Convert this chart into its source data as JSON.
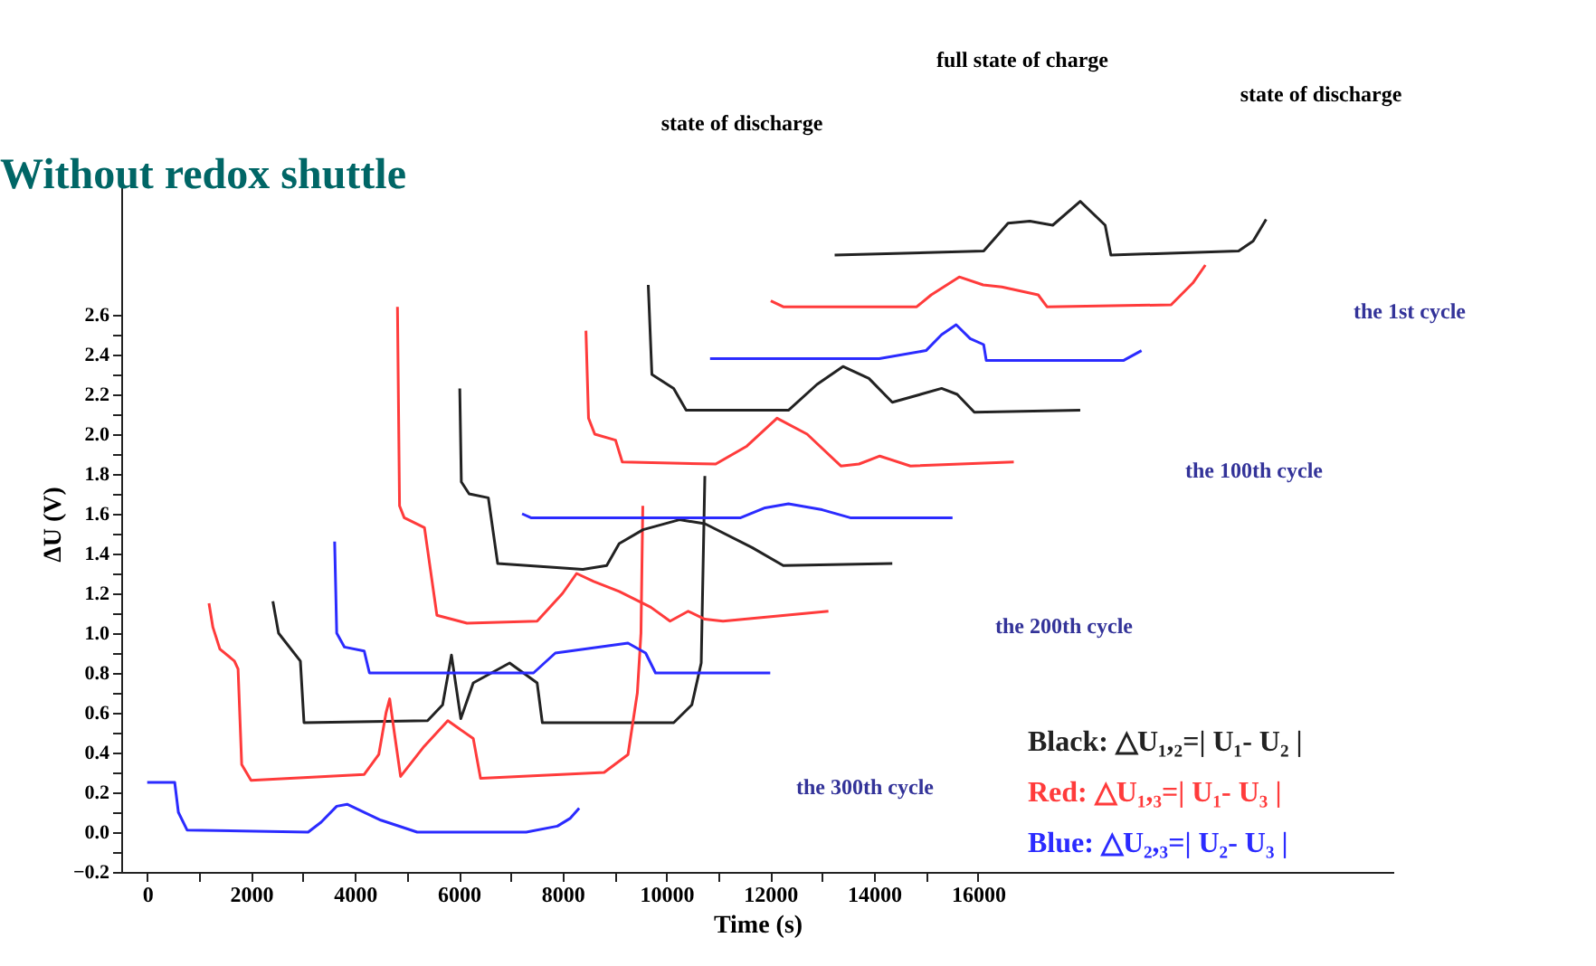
{
  "chart_data": {
    "type": "line",
    "title": "Without redox shuttle",
    "xlabel": "Time (s)",
    "ylabel": "ΔU (V)",
    "xlim": [
      -500,
      24000
    ],
    "ylim": [
      -0.2,
      3.3
    ],
    "xticks": [
      0,
      {
        "value": 1000,
        "label": null
      },
      2000,
      {
        "value": 3000,
        "label": null
      },
      4000,
      {
        "value": 5000,
        "label": null
      },
      6000,
      {
        "value": 7000,
        "label": null
      },
      8000,
      {
        "value": 9000,
        "label": null
      },
      10000,
      {
        "value": 11000,
        "label": null
      },
      12000,
      {
        "value": 13000,
        "label": null
      },
      14000,
      {
        "value": 15000,
        "label": null
      },
      16000
    ],
    "yticks": [
      -0.2,
      {
        "value": -0.1,
        "label": null
      },
      {
        "value": 0,
        "label": "0.0"
      },
      {
        "value": 0.1,
        "label": null
      },
      0.2,
      {
        "value": 0.3,
        "label": null
      },
      0.4,
      {
        "value": 0.5,
        "label": null
      },
      0.6,
      {
        "value": 0.7,
        "label": null
      },
      0.8,
      {
        "value": 0.9,
        "label": null
      },
      {
        "value": 1,
        "label": "1.0"
      },
      {
        "value": 1.1,
        "label": null
      },
      1.2,
      {
        "value": 1.3,
        "label": null
      },
      1.4,
      {
        "value": 1.5,
        "label": null
      },
      1.6,
      {
        "value": 1.7,
        "label": null
      },
      1.8,
      {
        "value": 1.9,
        "label": null
      },
      {
        "value": 2,
        "label": "2.0"
      },
      {
        "value": 2.1,
        "label": null
      },
      2.2,
      {
        "value": 2.3,
        "label": null
      },
      2.4,
      {
        "value": 2.5,
        "label": null
      },
      2.6
    ],
    "grid": false,
    "marker": "none",
    "line_style": "solid",
    "legend": "bottom right",
    "series": [
      {
        "name": "Black: △U₁,₂=| U₁- U₂ |",
        "color": "#222222",
        "x": [
          2420,
          2530,
          2950,
          3020,
          5400,
          5690,
          5860,
          6040,
          6280,
          6980,
          7510,
          7610,
          10140,
          10490,
          10670,
          10740
        ],
        "values": [
          1.16,
          1.0,
          0.86,
          0.55,
          0.56,
          0.64,
          0.89,
          0.57,
          0.75,
          0.85,
          0.75,
          0.55,
          0.55,
          0.64,
          0.85,
          1.79
        ]
      },
      {
        "name": "Red: △U₁,₃=| U₁- U₃ |",
        "color": "#ff3b3b",
        "x": [
          1190,
          1265,
          1400,
          1680,
          1750,
          1820,
          2000,
          4180,
          4460,
          4600,
          4670,
          4760,
          4880,
          5330,
          5790,
          6280,
          6420,
          8800,
          9260,
          9440,
          9510,
          9545
        ],
        "values": [
          1.15,
          1.03,
          0.92,
          0.86,
          0.82,
          0.34,
          0.26,
          0.29,
          0.39,
          0.6,
          0.67,
          0.5,
          0.28,
          0.43,
          0.56,
          0.47,
          0.27,
          0.3,
          0.39,
          0.7,
          1.0,
          1.64
        ]
      },
      {
        "name": "Blue: △U₂,₃=| U₂- U₃ |",
        "color": "#2b2bff",
        "x": [
          0,
          530,
          600,
          770,
          3100,
          3350,
          3650,
          3850,
          4500,
          5200,
          7300,
          7900,
          8150,
          8320
        ],
        "values": [
          0.25,
          0.25,
          0.1,
          0.01,
          0,
          0.05,
          0.13,
          0.14,
          0.06,
          0,
          0,
          0.03,
          0.07,
          0.12
        ]
      },
      {
        "color": "#222222",
        "x": [
          6020,
          6050,
          6200,
          6570,
          6750,
          8390,
          8850,
          9090,
          9550,
          10250,
          10740,
          11650,
          12250,
          14350
        ],
        "values": [
          2.23,
          1.76,
          1.7,
          1.68,
          1.35,
          1.32,
          1.34,
          1.45,
          1.52,
          1.57,
          1.55,
          1.43,
          1.34,
          1.35
        ]
      },
      {
        "color": "#ff3b3b",
        "x": [
          4820,
          4860,
          4950,
          5340,
          5580,
          6160,
          7510,
          8000,
          8270,
          8600,
          9090,
          9700,
          10070,
          10420,
          10740,
          11090,
          13120
        ],
        "values": [
          2.64,
          1.64,
          1.58,
          1.53,
          1.09,
          1.05,
          1.06,
          1.2,
          1.3,
          1.26,
          1.21,
          1.13,
          1.06,
          1.11,
          1.07,
          1.06,
          1.11
        ]
      },
      {
        "color": "#2b2bff",
        "x": [
          3610,
          3650,
          3800,
          4180,
          4280,
          7440,
          7860,
          9260,
          9600,
          9790,
          12000
        ],
        "values": [
          1.46,
          1.0,
          0.93,
          0.91,
          0.8,
          0.8,
          0.9,
          0.95,
          0.9,
          0.8,
          0.8
        ]
      },
      {
        "color": "#222222",
        "x": [
          9650,
          9720,
          10140,
          10380,
          12350,
          12900,
          13400,
          13900,
          14350,
          15300,
          15600,
          15930,
          17970
        ],
        "values": [
          2.75,
          2.3,
          2.23,
          2.12,
          2.12,
          2.25,
          2.34,
          2.28,
          2.16,
          2.23,
          2.2,
          2.11,
          2.12
        ]
      },
      {
        "color": "#ff3b3b",
        "x": [
          8450,
          8500,
          8620,
          9020,
          9150,
          10950,
          11550,
          12130,
          12710,
          13360,
          13710,
          14110,
          14700,
          16690
        ],
        "values": [
          2.52,
          2.08,
          2.0,
          1.97,
          1.86,
          1.85,
          1.94,
          2.08,
          2.0,
          1.84,
          1.85,
          1.89,
          1.84,
          1.86
        ]
      },
      {
        "color": "#2b2bff",
        "x": [
          7220,
          7390,
          11430,
          11900,
          12350,
          13000,
          13540,
          15510
        ],
        "values": [
          1.6,
          1.58,
          1.58,
          1.63,
          1.65,
          1.62,
          1.58,
          1.58
        ]
      },
      {
        "color": "#222222",
        "x": [
          13240,
          16110,
          16580,
          17000,
          17440,
          17970,
          18450,
          18560,
          21020,
          21300,
          21550
        ],
        "values": [
          2.9,
          2.92,
          3.06,
          3.07,
          3.05,
          3.17,
          3.05,
          2.9,
          2.92,
          2.97,
          3.08
        ]
      },
      {
        "color": "#ff3b3b",
        "x": [
          12010,
          12250,
          14820,
          15100,
          15640,
          16100,
          16460,
          17160,
          17330,
          19720,
          20140,
          20380
        ],
        "values": [
          2.67,
          2.64,
          2.64,
          2.7,
          2.79,
          2.75,
          2.74,
          2.7,
          2.64,
          2.65,
          2.76,
          2.85
        ]
      },
      {
        "color": "#2b2bff",
        "x": [
          10840,
          14100,
          15000,
          15300,
          15580,
          15850,
          16110,
          16160,
          18800,
          19150
        ],
        "values": [
          2.38,
          2.38,
          2.42,
          2.5,
          2.55,
          2.48,
          2.45,
          2.37,
          2.37,
          2.42
        ]
      }
    ],
    "annotations": [
      "state of discharge",
      "full state of charge",
      "state of discharge",
      "the 1st cycle",
      "the 100th cycle",
      "the 200th cycle",
      "the 300th cycle"
    ]
  }
}
